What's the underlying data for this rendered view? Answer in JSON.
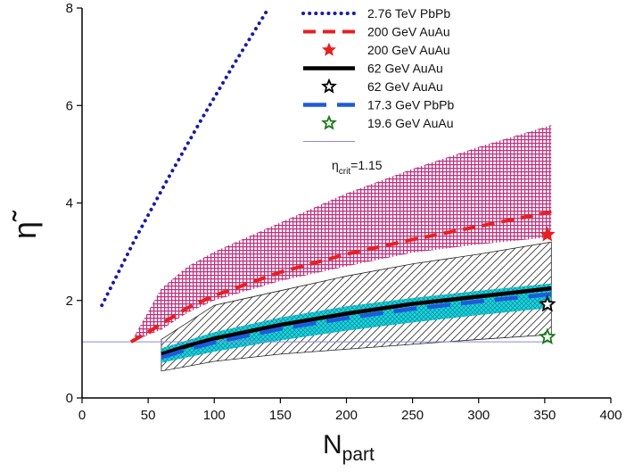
{
  "chart_data": {
    "type": "line",
    "xlabel_main": "N",
    "xlabel_sub": "part",
    "ylabel": "η̃",
    "xlim": [
      0,
      400
    ],
    "ylim": [
      0,
      8
    ],
    "xticks": [
      0,
      50,
      100,
      150,
      200,
      250,
      300,
      350,
      400
    ],
    "yticks": [
      0,
      2,
      4,
      6,
      8
    ],
    "legend_position": "top-right",
    "colors": {
      "pbpb_276": "#1a1aa8",
      "auau_200": "#e62020",
      "auau_62": "#000000",
      "pbpb_173": "#1e5adc",
      "auau_196": "#1a7a1a",
      "band_200": "#c0307e",
      "band_173": "#19d4e0",
      "crit": "#8a8ad8"
    },
    "series": [
      {
        "name": "2.76 TeV PbPb",
        "style": "dotted",
        "color_key": "pbpb_276",
        "x": [
          15,
          40,
          65,
          90,
          115,
          140
        ],
        "y": [
          1.9,
          3.25,
          4.5,
          5.7,
          6.85,
          7.95
        ]
      },
      {
        "name": "200 GeV AuAu",
        "style": "dashed",
        "color_key": "auau_200",
        "x": [
          37,
          50,
          60,
          80,
          100,
          150,
          200,
          250,
          300,
          355
        ],
        "y": [
          1.15,
          1.35,
          1.52,
          1.85,
          2.1,
          2.58,
          2.95,
          3.25,
          3.52,
          3.82
        ]
      },
      {
        "name": "62 GeV AuAu",
        "style": "solid",
        "color_key": "auau_62",
        "x": [
          60,
          80,
          100,
          150,
          200,
          250,
          300,
          355
        ],
        "y": [
          0.9,
          1.07,
          1.22,
          1.5,
          1.73,
          1.93,
          2.08,
          2.25
        ]
      },
      {
        "name": "17.3 GeV PbPb",
        "style": "longdash",
        "color_key": "pbpb_173",
        "x": [
          60,
          80,
          100,
          150,
          200,
          250,
          300,
          355
        ],
        "y": [
          0.83,
          1.0,
          1.14,
          1.42,
          1.64,
          1.83,
          1.98,
          2.13
        ]
      }
    ],
    "points": [
      {
        "name": "200 GeV AuAu",
        "marker": "filled-star",
        "color_key": "auau_200",
        "x": 352,
        "y": 3.35
      },
      {
        "name": "62 GeV AuAu",
        "marker": "open-star",
        "color_key": "auau_62",
        "x": 352,
        "y": 1.92
      },
      {
        "name": "19.6 GeV AuAu",
        "marker": "open-star",
        "color_key": "auau_196",
        "x": 352,
        "y": 1.25
      }
    ],
    "bands": [
      {
        "name": "200 GeV AuAu",
        "fill": "crosshatch",
        "color_key": "band_200",
        "x": [
          37,
          60,
          80,
          100,
          150,
          200,
          250,
          300,
          355
        ],
        "upper": [
          1.15,
          2.25,
          2.7,
          3.0,
          3.6,
          4.2,
          4.7,
          5.15,
          5.6
        ],
        "lower": [
          1.15,
          1.4,
          1.75,
          2.0,
          2.4,
          2.7,
          2.98,
          3.15,
          3.3
        ]
      },
      {
        "name": "62 GeV AuAu",
        "fill": "diagonal-hatch",
        "color_key": "auau_62",
        "x": [
          60,
          100,
          150,
          200,
          250,
          300,
          355
        ],
        "upper": [
          1.2,
          1.9,
          2.2,
          2.5,
          2.75,
          2.95,
          3.2
        ],
        "lower": [
          0.55,
          0.75,
          0.9,
          1.0,
          1.1,
          1.2,
          1.3
        ]
      },
      {
        "name": "17.3 GeV PbPb",
        "fill": "crosshatch",
        "color_key": "band_173",
        "x": [
          60,
          100,
          150,
          200,
          250,
          300,
          355
        ],
        "upper": [
          1.02,
          1.35,
          1.65,
          1.88,
          2.05,
          2.2,
          2.35
        ],
        "lower": [
          0.72,
          0.95,
          1.18,
          1.38,
          1.55,
          1.7,
          1.85
        ]
      }
    ],
    "crit_line": {
      "label": "η",
      "label_sub": "crit",
      "label_value": "=1.15",
      "y": 1.15,
      "x_range": [
        0,
        355
      ]
    },
    "legend": [
      {
        "label": "2.76 TeV PbPb",
        "kind": "line",
        "style": "dotted",
        "color_key": "pbpb_276"
      },
      {
        "label": "200 GeV AuAu",
        "kind": "line",
        "style": "dashed",
        "color_key": "auau_200"
      },
      {
        "label": "200 GeV AuAu",
        "kind": "marker",
        "marker": "filled-star",
        "color_key": "auau_200"
      },
      {
        "label": "62 GeV AuAu",
        "kind": "line",
        "style": "solid",
        "color_key": "auau_62"
      },
      {
        "label": "62 GeV AuAu",
        "kind": "marker",
        "marker": "open-star",
        "color_key": "auau_62"
      },
      {
        "label": "17.3 GeV PbPb",
        "kind": "line",
        "style": "longdash",
        "color_key": "pbpb_173"
      },
      {
        "label": "19.6 GeV AuAu",
        "kind": "marker",
        "marker": "open-star",
        "color_key": "auau_196"
      },
      {
        "label": "",
        "kind": "line",
        "style": "thin",
        "color_key": "crit"
      }
    ]
  }
}
